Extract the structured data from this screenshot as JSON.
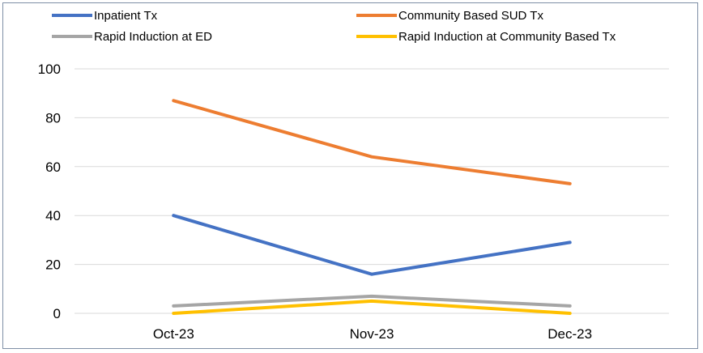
{
  "chart_data": {
    "type": "line",
    "title": "",
    "xlabel": "",
    "ylabel": "",
    "categories": [
      "Oct-23",
      "Nov-23",
      "Dec-23"
    ],
    "ylim": [
      0,
      100
    ],
    "yticks": [
      0,
      20,
      40,
      60,
      80,
      100
    ],
    "grid": true,
    "legend": "top",
    "series": [
      {
        "name": "Inpatient Tx",
        "color": "#4472c4",
        "values": [
          40,
          16,
          29
        ]
      },
      {
        "name": "Community Based SUD Tx",
        "color": "#ed7d31",
        "values": [
          87,
          64,
          53
        ]
      },
      {
        "name": "Rapid Induction at ED",
        "color": "#a5a5a5",
        "values": [
          3,
          7,
          3
        ]
      },
      {
        "name": "Rapid Induction at Community Based Tx",
        "color": "#ffc000",
        "values": [
          0,
          5,
          0
        ]
      }
    ]
  }
}
